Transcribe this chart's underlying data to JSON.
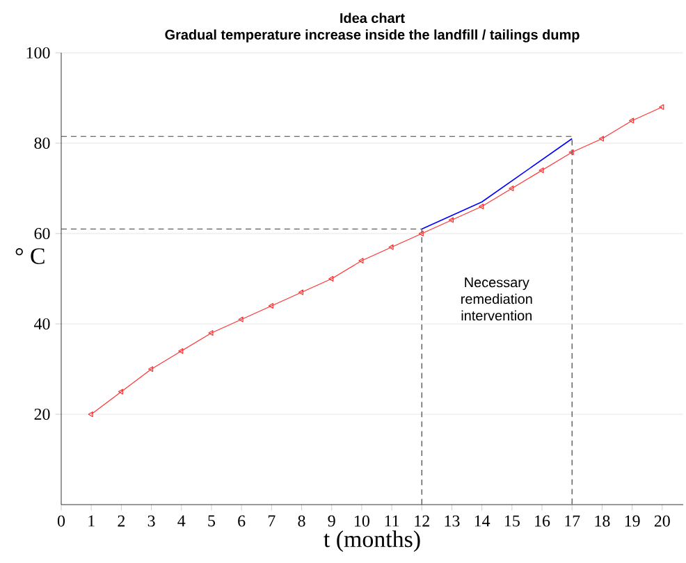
{
  "chart_data": {
    "type": "line",
    "title": "Idea chart",
    "subtitle": "Gradual temperature increase inside the landfill / tailings dump",
    "xlabel": "t (months)",
    "ylabel": "° C",
    "xlim": [
      0,
      20.7
    ],
    "ylim": [
      0,
      100
    ],
    "xticks": [
      0,
      1,
      2,
      3,
      4,
      5,
      6,
      7,
      8,
      9,
      10,
      11,
      12,
      13,
      14,
      15,
      16,
      17,
      18,
      19,
      20
    ],
    "yticks": [
      20,
      40,
      60,
      80,
      100
    ],
    "grid": "y",
    "series": [
      {
        "x": [
          1,
          2,
          3,
          4,
          5,
          6,
          7,
          8,
          9,
          10,
          11,
          12,
          13,
          14,
          15,
          16,
          17,
          18,
          19,
          20
        ],
        "values": [
          20,
          25,
          30,
          34,
          38,
          41,
          44,
          47,
          50,
          54,
          57,
          60,
          63,
          66,
          70,
          74,
          78,
          81,
          85,
          88
        ],
        "color": "#ff3333",
        "marker": "triangle",
        "line_style": "solid"
      },
      {
        "x": [
          12,
          14,
          17
        ],
        "values": [
          61,
          67,
          81
        ],
        "color": "#0000ff",
        "marker": "none",
        "line_style": "solid"
      },
      {
        "x": [
          0,
          12,
          12
        ],
        "values": [
          61,
          61,
          0
        ],
        "color": "#404040",
        "marker": "none",
        "line_style": "dashed"
      },
      {
        "x": [
          0,
          17,
          17
        ],
        "values": [
          81.5,
          81.5,
          0
        ],
        "color": "#404040",
        "marker": "none",
        "line_style": "dashed"
      }
    ],
    "annotations": [
      "Necessary remediation intervention"
    ]
  }
}
